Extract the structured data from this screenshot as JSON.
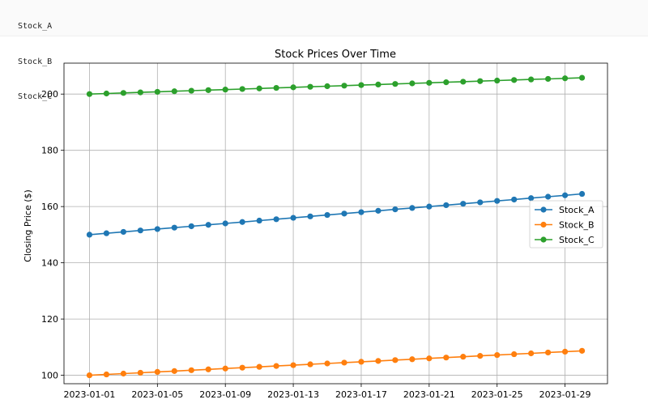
{
  "output_lines": [
    "Stock_A",
    "Stock_B",
    "Stock_C"
  ],
  "chart_data": {
    "type": "line",
    "title": "Stock Prices Over Time",
    "xlabel": "",
    "ylabel": "Closing Price ($)",
    "x": [
      "2023-01-01",
      "2023-01-02",
      "2023-01-03",
      "2023-01-04",
      "2023-01-05",
      "2023-01-06",
      "2023-01-07",
      "2023-01-08",
      "2023-01-09",
      "2023-01-10",
      "2023-01-11",
      "2023-01-12",
      "2023-01-13",
      "2023-01-14",
      "2023-01-15",
      "2023-01-16",
      "2023-01-17",
      "2023-01-18",
      "2023-01-19",
      "2023-01-20",
      "2023-01-21",
      "2023-01-22",
      "2023-01-23",
      "2023-01-24",
      "2023-01-25",
      "2023-01-26",
      "2023-01-27",
      "2023-01-28",
      "2023-01-29",
      "2023-01-30"
    ],
    "xticks": [
      "2023-01-01",
      "2023-01-05",
      "2023-01-09",
      "2023-01-13",
      "2023-01-17",
      "2023-01-21",
      "2023-01-25",
      "2023-01-29"
    ],
    "yticks": [
      100,
      120,
      140,
      160,
      180,
      200
    ],
    "ylim": [
      97,
      211
    ],
    "grid": true,
    "legend_position": "center-right",
    "series": [
      {
        "name": "Stock_A",
        "color": "#1f77b4",
        "values": [
          150.0,
          150.5,
          151.0,
          151.5,
          152.0,
          152.5,
          153.0,
          153.5,
          154.0,
          154.5,
          155.0,
          155.5,
          156.0,
          156.5,
          157.0,
          157.5,
          158.0,
          158.5,
          159.0,
          159.5,
          160.0,
          160.5,
          161.0,
          161.5,
          162.0,
          162.5,
          163.0,
          163.5,
          164.0,
          164.5
        ]
      },
      {
        "name": "Stock_B",
        "color": "#ff7f0e",
        "values": [
          100.0,
          100.3,
          100.6,
          100.9,
          101.2,
          101.5,
          101.8,
          102.1,
          102.4,
          102.7,
          103.0,
          103.3,
          103.6,
          103.9,
          104.2,
          104.5,
          104.8,
          105.1,
          105.4,
          105.7,
          106.0,
          106.3,
          106.6,
          106.9,
          107.2,
          107.5,
          107.8,
          108.1,
          108.4,
          108.7
        ]
      },
      {
        "name": "Stock_C",
        "color": "#2ca02c",
        "values": [
          200.0,
          200.2,
          200.4,
          200.6,
          200.8,
          201.0,
          201.2,
          201.4,
          201.6,
          201.8,
          202.0,
          202.2,
          202.4,
          202.6,
          202.8,
          203.0,
          203.2,
          203.4,
          203.6,
          203.8,
          204.0,
          204.2,
          204.4,
          204.6,
          204.8,
          205.0,
          205.2,
          205.4,
          205.6,
          205.8
        ]
      }
    ]
  }
}
